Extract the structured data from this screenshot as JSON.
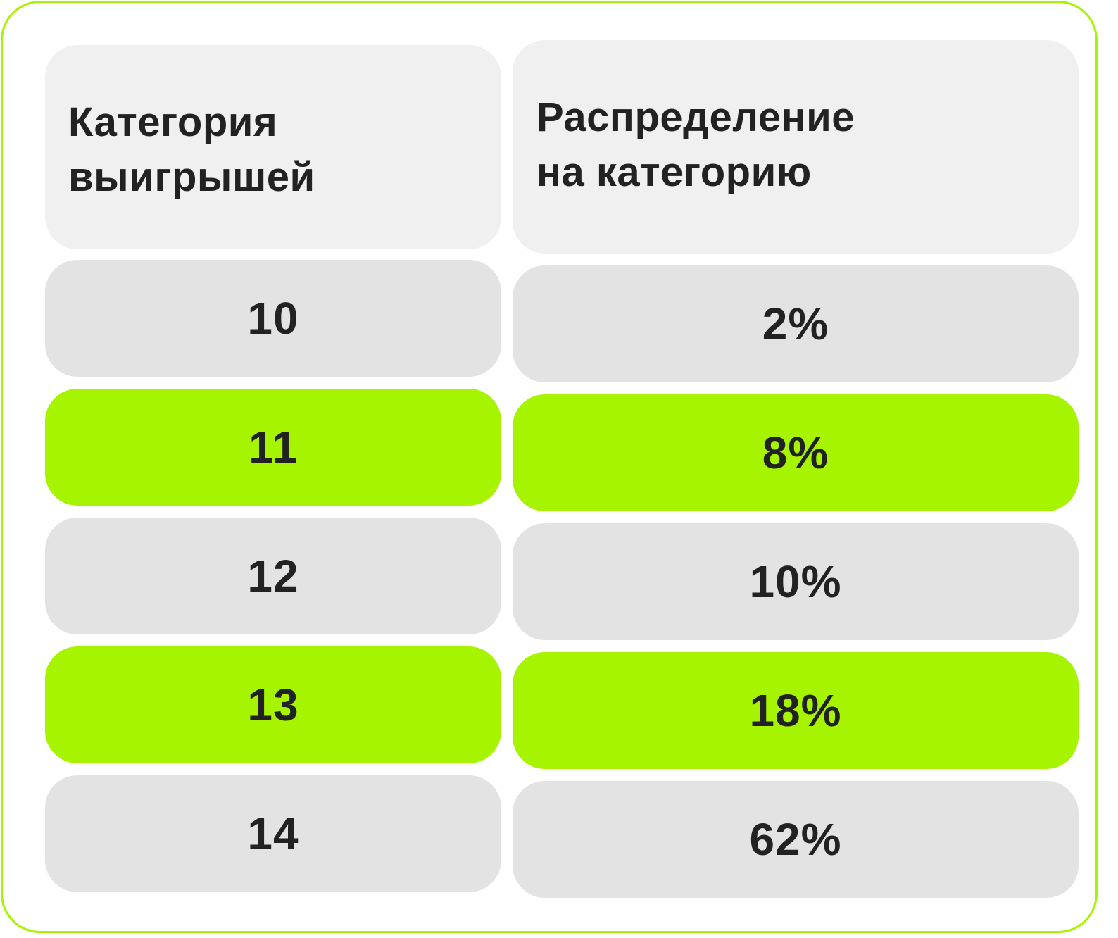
{
  "table": {
    "headers": {
      "col1": [
        "Категория",
        "выигрышей"
      ],
      "col2": [
        "Распределение",
        "на категорию"
      ]
    },
    "rows": [
      {
        "category": "10",
        "share": "2%",
        "highlight": false
      },
      {
        "category": "11",
        "share": "8%",
        "highlight": true
      },
      {
        "category": "12",
        "share": "10%",
        "highlight": false
      },
      {
        "category": "13",
        "share": "18%",
        "highlight": true
      },
      {
        "category": "14",
        "share": "62%",
        "highlight": false
      }
    ]
  },
  "colors": {
    "accent_green": "#a6f400",
    "header_bg": "#f0f0f0",
    "row_gray": "#e3e3e3",
    "text": "#222222"
  }
}
